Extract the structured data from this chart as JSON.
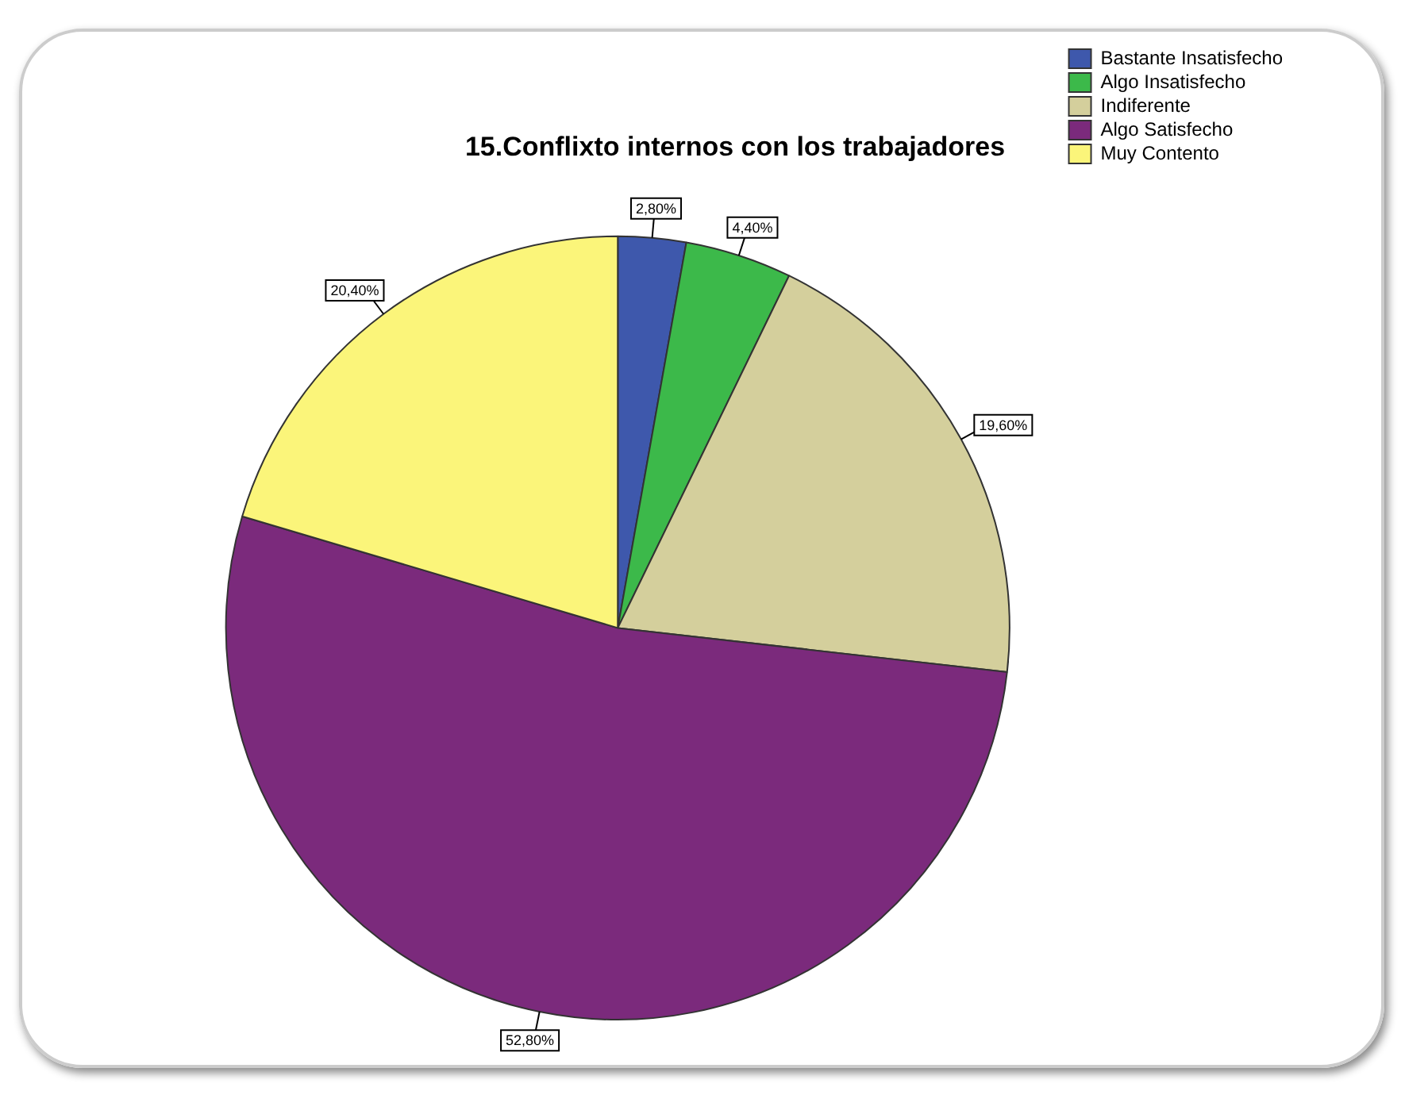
{
  "chart_data": {
    "type": "pie",
    "title": "15.Conflixto internos con los trabajadores",
    "categories": [
      "Bastante Insatisfecho",
      "Algo Insatisfecho",
      "Indiferente",
      "Algo Satisfecho",
      "Muy Contento"
    ],
    "values": [
      2.8,
      4.4,
      19.6,
      52.8,
      20.4
    ],
    "colors": [
      "#3e58ac",
      "#3cb94a",
      "#d4cf9c",
      "#7b2a7c",
      "#fbf57a"
    ],
    "value_labels": [
      "2,80%",
      "4,40%",
      "19,60%",
      "52,80%",
      "20,40%"
    ],
    "legend": "top right"
  }
}
